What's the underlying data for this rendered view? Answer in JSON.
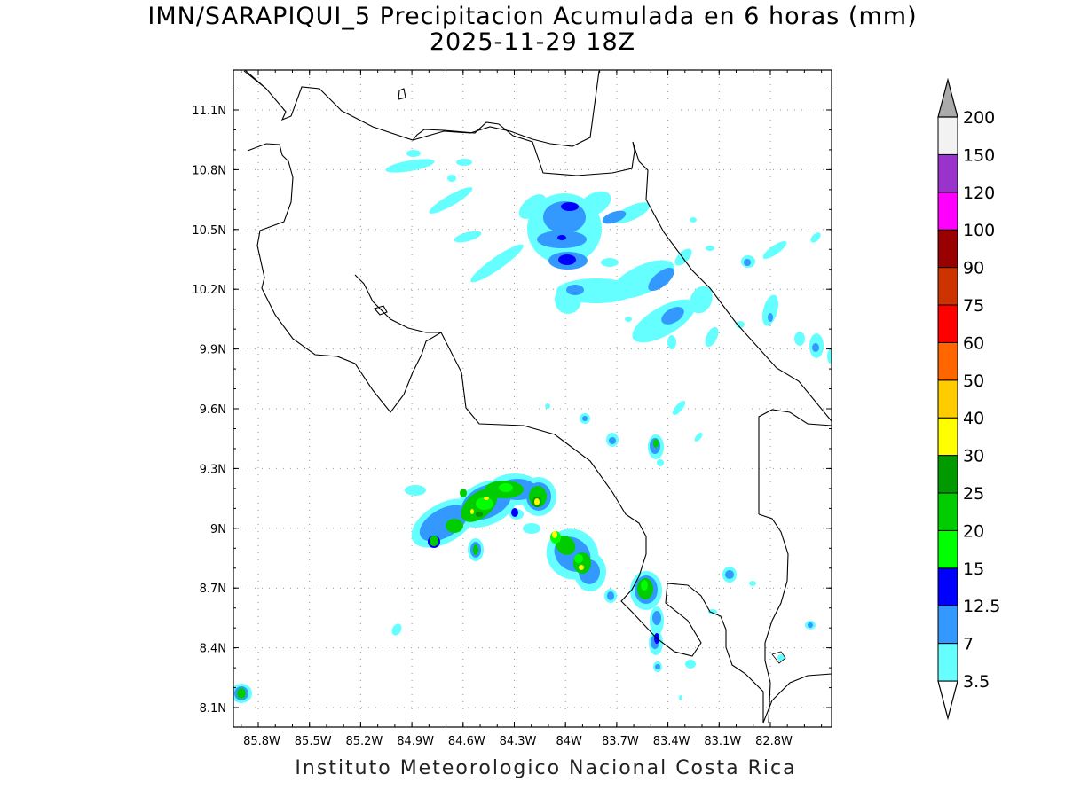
{
  "title_line1": "IMN/SARAPIQUI_5 Precipitacion Acumulada en 6 horas (mm)",
  "title_line2": "2025-11-29 18Z",
  "footer": "Instituto Meteorologico Nacional Costa Rica",
  "map": {
    "lon_labels": [
      "85.8W",
      "85.5W",
      "85.2W",
      "84.9W",
      "84.6W",
      "84.3W",
      "84W",
      "83.7W",
      "83.4W",
      "83.1W",
      "82.8W"
    ],
    "lat_labels": [
      "11.1N",
      "10.8N",
      "10.5N",
      "10.2N",
      "9.9N",
      "9.6N",
      "9.3N",
      "9N",
      "8.7N",
      "8.4N",
      "8.1N"
    ]
  },
  "colorbar": {
    "levels": [
      "3.5",
      "7",
      "12.5",
      "15",
      "20",
      "25",
      "30",
      "40",
      "50",
      "60",
      "75",
      "90",
      "100",
      "120",
      "150",
      "200"
    ],
    "colors": [
      "#66ffff",
      "#3399ff",
      "#0000ff",
      "#00ff00",
      "#00cc00",
      "#009900",
      "#ffff00",
      "#ffcc00",
      "#ff6600",
      "#ff0000",
      "#cc3300",
      "#990000",
      "#ff00ff",
      "#9933cc",
      "#f2f2f2",
      "#aaaaaa"
    ]
  }
}
